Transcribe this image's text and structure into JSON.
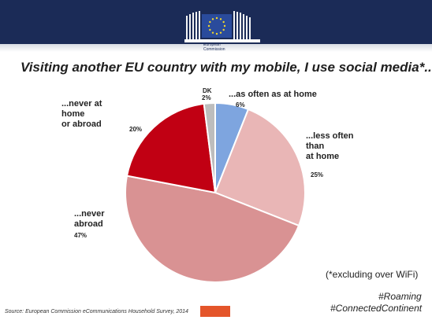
{
  "header": {
    "logo_text": "European\nCommission",
    "background_color": "#1b2b57",
    "flag_color": "#2a4b9c",
    "star_color": "#f3d72a"
  },
  "chart_data": {
    "type": "pie",
    "title": "Visiting another EU country with my mobile, I use social media*.....",
    "slices": [
      {
        "label": "...as often as at home",
        "value": 6,
        "pct_label": "6%",
        "color": "#7ea5df"
      },
      {
        "label": "...less often\nthan\nat home",
        "value": 25,
        "pct_label": "25%",
        "color": "#e9b6b6"
      },
      {
        "label": "...never\nabroad",
        "value": 47,
        "pct_label": "47%",
        "color": "#d99293"
      },
      {
        "label": "...never at\nhome\nor abroad",
        "value": 20,
        "pct_label": "20%",
        "color": "#c10013"
      },
      {
        "label": "DK",
        "value": 2,
        "pct_label": "2%",
        "color": "#bdbdbd"
      }
    ],
    "start": "12 o'clock",
    "direction": "clockwise",
    "legend": "none"
  },
  "footnote": "(*excluding over WiFi)",
  "hashtags": [
    "#Roaming",
    "#ConnectedContinent"
  ],
  "source": "Source: European Commission eCommunications Household Survey, 2014",
  "accent_color": "#e4552a"
}
